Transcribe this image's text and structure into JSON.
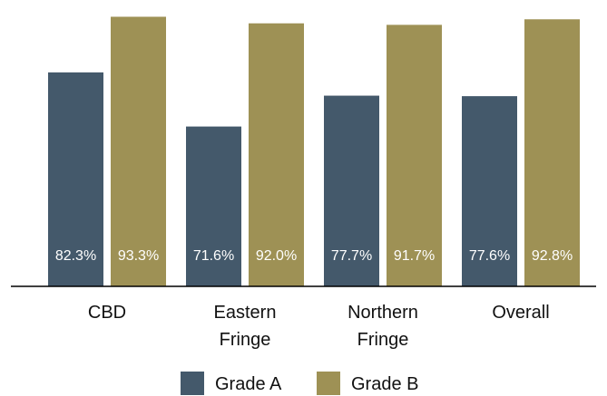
{
  "chart_data": {
    "type": "bar",
    "categories": [
      [
        "CBD"
      ],
      [
        "Eastern",
        "Fringe"
      ],
      [
        "Northern",
        "Fringe"
      ],
      [
        "Overall"
      ]
    ],
    "series": [
      {
        "name": "Grade A",
        "values": [
          82.3,
          71.6,
          77.7,
          77.6
        ],
        "labels": [
          "82.3%",
          "71.6%",
          "77.7%",
          "77.6%"
        ],
        "color": "#44596b"
      },
      {
        "name": "Grade B",
        "values": [
          93.3,
          92.0,
          91.7,
          92.8
        ],
        "labels": [
          "93.3%",
          "92.0%",
          "91.7%",
          "92.8%"
        ],
        "color": "#9e9155"
      }
    ],
    "ylim": [
      40,
      95
    ],
    "grid": false,
    "legend": "bottom",
    "title": "",
    "xlabel": "",
    "ylabel": ""
  }
}
